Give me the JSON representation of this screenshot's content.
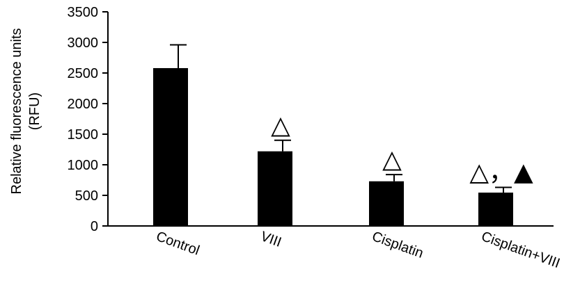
{
  "chart_data": {
    "type": "bar",
    "categories": [
      "Control",
      "VIII",
      "Cisplatin",
      "Cisplatin+VIII"
    ],
    "values": [
      2580,
      1220,
      730,
      545
    ],
    "error": [
      380,
      180,
      110,
      85
    ],
    "markers": [
      "",
      "△",
      "△",
      "△，▲"
    ],
    "ylabel_line1": "Relative fluorescence units",
    "ylabel_line2": "(RFU)",
    "ylim": [
      0,
      3500
    ],
    "yticks": [
      "0",
      "500",
      "1000",
      "1500",
      "2000",
      "2500",
      "3000",
      "3500"
    ],
    "bar_color": "#000000",
    "grid": false
  }
}
